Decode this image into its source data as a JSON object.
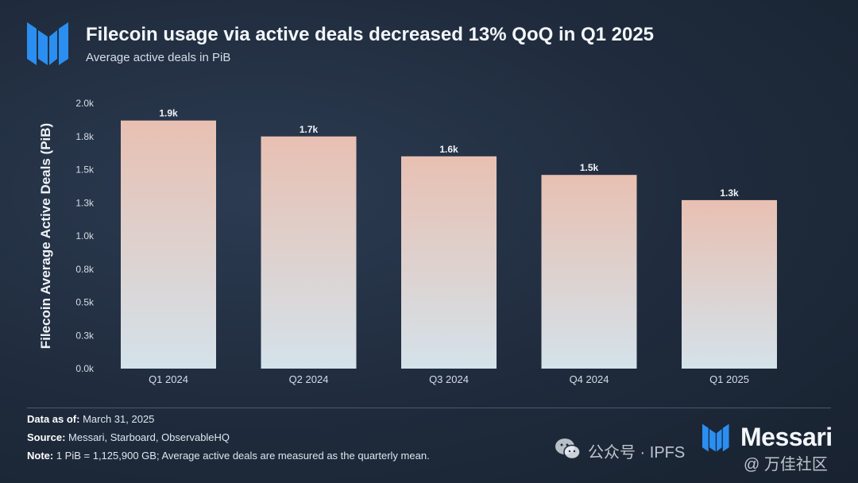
{
  "header": {
    "title": "Filecoin usage via active deals decreased 13% QoQ in Q1 2025",
    "subtitle": "Average active deals in PiB"
  },
  "chart_data": {
    "type": "bar",
    "categories": [
      "Q1 2024",
      "Q2 2024",
      "Q3 2024",
      "Q4 2024",
      "Q1 2025"
    ],
    "values": [
      1870,
      1750,
      1600,
      1460,
      1270
    ],
    "data_labels": [
      "1.9k",
      "1.7k",
      "1.6k",
      "1.5k",
      "1.3k"
    ],
    "ylabel": "Filecoin Average Active Deals (PiB)",
    "xlabel": "",
    "ylim": [
      0,
      2000
    ],
    "y_ticks": [
      0,
      250,
      500,
      750,
      1000,
      1250,
      1500,
      1750,
      2000
    ],
    "y_tick_labels": [
      "0.0k",
      "0.3k",
      "0.5k",
      "0.8k",
      "1.0k",
      "1.3k",
      "1.5k",
      "1.8k",
      "2.0k"
    ],
    "grid": false,
    "colors": {
      "bar_top": "#e8c0b2",
      "bar_bottom": "#d4e2ea",
      "axis_text": "#d6dde7"
    }
  },
  "footer": {
    "data_as_of_label": "Data as of:",
    "data_as_of_value": " March 31, 2025",
    "source_label": "Source:",
    "source_value": " Messari, Starboard, ObservableHQ",
    "note_label": "Note:",
    "note_value": "  1 PiB = 1,125,900 GB; Average active deals are measured as the quarterly mean."
  },
  "brand": {
    "name": "Messari",
    "color": "#2a8ff0"
  },
  "watermark": {
    "left_text": "公众号 · IPFS",
    "right_text": "@ 万佳社区"
  }
}
